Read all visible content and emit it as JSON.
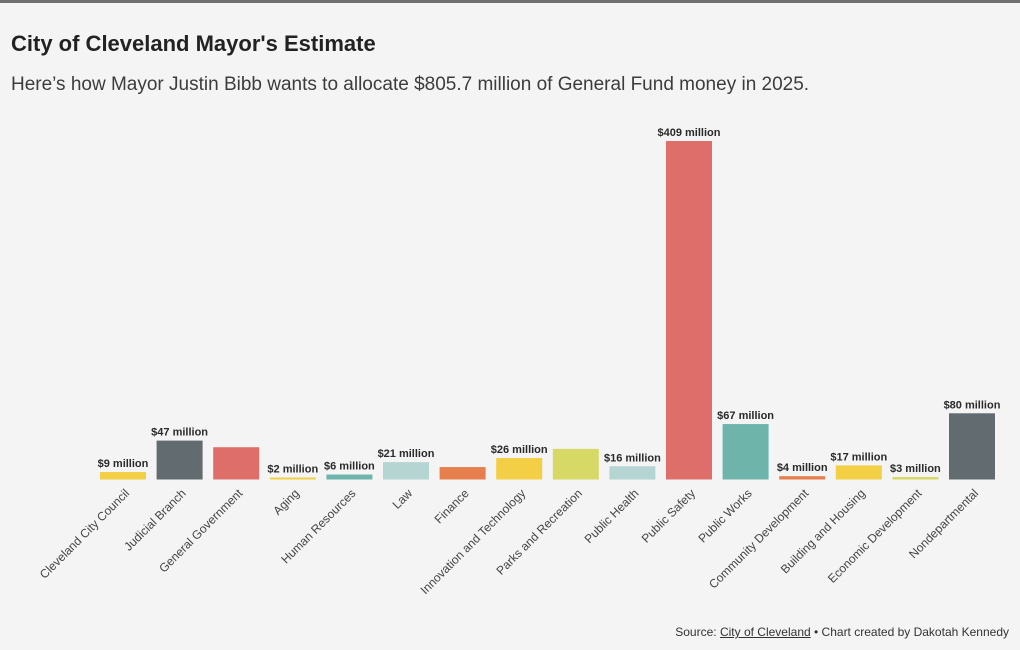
{
  "title": "City of Cleveland Mayor's Estimate",
  "subtitle": "Here’s how Mayor Justin Bibb wants to allocate $805.7 million of General Fund money in 2025.",
  "source": {
    "prefix": "Source:",
    "link_text": "City of Cleveland",
    "suffix": "• Chart created by Dakotah Kennedy"
  },
  "chart_data": {
    "type": "bar",
    "title": "City of Cleveland Mayor's Estimate",
    "xlabel": "",
    "ylabel": "",
    "unit": "million USD",
    "ylim": [
      0,
      409
    ],
    "grid": false,
    "categories": [
      "Cleveland City Council",
      "Judicial Branch",
      "General Government",
      "Aging",
      "Human Resources",
      "Law",
      "Finance",
      "Innovation and Technology",
      "Parks and Recreation",
      "Public Health",
      "Public Safety",
      "Public Works",
      "Community Development",
      "Building and Housing",
      "Economic Development",
      "Nondepartmental"
    ],
    "values": [
      9,
      47,
      39,
      2,
      6,
      21,
      15,
      26,
      37,
      16,
      409,
      67,
      4,
      17,
      3,
      80
    ],
    "data_labels": [
      "$9 million",
      "$47 million",
      "",
      "$2 million",
      "$6 million",
      "$21 million",
      "",
      "$26 million",
      "",
      "$16 million",
      "$409 million",
      "$67 million",
      "$4 million",
      "$17 million",
      "$3 million",
      "$80 million"
    ],
    "colors": [
      "#f2cf44",
      "#626b70",
      "#de6e6a",
      "#f2cf44",
      "#6fb4aa",
      "#b5d5d2",
      "#e67e4d",
      "#f2cf44",
      "#d6d965",
      "#b5d5d2",
      "#de6e6a",
      "#6fb4aa",
      "#e67e4d",
      "#f2cf44",
      "#d6d965",
      "#626b70"
    ]
  }
}
